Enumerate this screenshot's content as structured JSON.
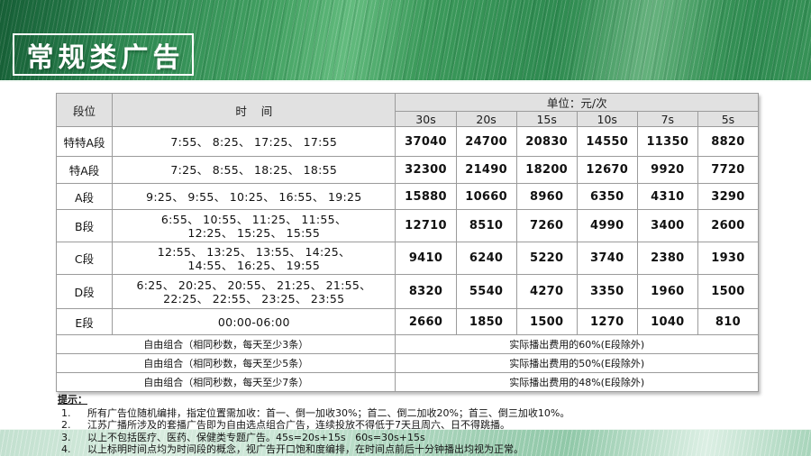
{
  "title": "常规类广告",
  "table": {
    "unit_label": "单位：元/次",
    "segment_header": "段位",
    "time_header": "时    间",
    "duration_headers": [
      "30s",
      "20s",
      "15s",
      "10s",
      "7s",
      "5s"
    ],
    "rows": [
      {
        "segment": "特特A段",
        "times": [
          "7:55、 8:25、 17:25、 17:55"
        ],
        "prices": [
          37040,
          24700,
          20830,
          14550,
          11350,
          8820
        ]
      },
      {
        "segment": "特A段",
        "times": [
          "7:25、 8:55、 18:25、 18:55"
        ],
        "prices": [
          32300,
          21490,
          18200,
          12670,
          9920,
          7720
        ]
      },
      {
        "segment": "A段",
        "times": [
          "9:25、 9:55、 10:25、 16:55、 19:25"
        ],
        "prices": [
          15880,
          10660,
          8960,
          6350,
          4310,
          3290
        ]
      },
      {
        "segment": "B段",
        "times": [
          "6:55、 10:55、 11:25、 11:55、",
          "12:25、 15:25、 15:55"
        ],
        "prices": [
          12710,
          8510,
          7260,
          4990,
          3400,
          2600
        ]
      },
      {
        "segment": "C段",
        "times": [
          "12:55、 13:25、 13:55、 14:25、",
          "14:55、 16:25、 19:55"
        ],
        "prices": [
          9410,
          6240,
          5220,
          3740,
          2380,
          1930
        ]
      },
      {
        "segment": "D段",
        "times": [
          "6:25、 20:25、 20:55、 21:25、 21:55、",
          "22:25、 22:55、 23:25、 23:55"
        ],
        "prices": [
          8320,
          5540,
          4270,
          3350,
          1960,
          1500
        ]
      },
      {
        "segment": "E段",
        "times": [
          "00:00-06:00"
        ],
        "prices": [
          2660,
          1850,
          1500,
          1270,
          1040,
          810
        ]
      }
    ],
    "combo_rows": [
      {
        "left": "自由组合（相同秒数，每天至少3条）",
        "right": "实际播出费用的60%(E段除外)"
      },
      {
        "left": "自由组合（相同秒数，每天至少5条）",
        "right": "实际播出费用的50%(E段除外)"
      },
      {
        "left": "自由组合（相同秒数，每天至少7条）",
        "right": "实际播出费用的48%(E段除外)"
      }
    ]
  },
  "notes": {
    "heading": "提示：",
    "items": [
      {
        "num": "1.",
        "text": "所有广告位随机编排，指定位置需加收：首一、倒一加收30%；首二、倒二加收20%；首三、倒三加收10%。"
      },
      {
        "num": "2.",
        "text": "江苏广播所涉及的套播广告即为自由选点组合广告，连续投放不得低于7天且周六、日不得跳播。"
      },
      {
        "num": "3.",
        "text": "以上不包括医疗、医药、保健类专题广告。45s=20s+15s   60s=30s+15s"
      },
      {
        "num": "4.",
        "text": "以上标明时间点均为时间段的概念，视广告开口饱和度编排，在时间点前后十分钟播出均视为正常。"
      }
    ]
  },
  "colors": {
    "header_green_dark": "#1f7344",
    "header_green_mid": "#3c9a5b",
    "header_green_light": "#63bb7e",
    "footer_green_light": "#d8ecdf",
    "footer_green_mid": "#90c8a8",
    "table_header_bg": "#e1e1e1",
    "table_border": "#9b9b9b",
    "title_text": "#ffffff"
  }
}
